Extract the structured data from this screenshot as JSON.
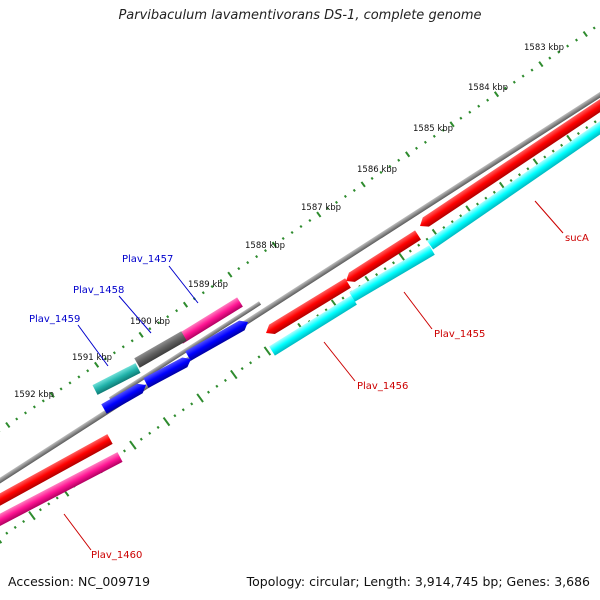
{
  "title": "Parvibaculum lavamentivorans DS-1, complete genome",
  "accession": "Accession: NC_009719",
  "stats": "Topology: circular; Length: 3,914,745 bp; Genes: 3,686",
  "colors": {
    "backbone": "#8c8c8c",
    "tick_green": "#2e8b2e",
    "cds_red": "#ff0000",
    "cds_cyan": "#00ffff",
    "cds_blue": "#0000ff",
    "cds_pink": "#ff1493",
    "cds_gray": "#606060",
    "cds_teal": "#20b2aa",
    "label_red": "#cc0000",
    "label_blue": "#0000cc"
  },
  "ruler_labels": [
    "1583 kbp",
    "1584 kbp",
    "1585 kbp",
    "1586 kbp",
    "1587 kbp",
    "1588 kbp",
    "1589 kbp",
    "1590 kbp",
    "1591 kbp",
    "1592 kbp"
  ],
  "genes": [
    {
      "label": "sucA",
      "color": "red"
    },
    {
      "label": "Plav_1455",
      "color": "red"
    },
    {
      "label": "Plav_1456",
      "color": "red"
    },
    {
      "label": "Plav_1457",
      "color": "blue"
    },
    {
      "label": "Plav_1458",
      "color": "blue"
    },
    {
      "label": "Plav_1459",
      "color": "blue"
    },
    {
      "label": "Plav_1460",
      "color": "red"
    }
  ]
}
